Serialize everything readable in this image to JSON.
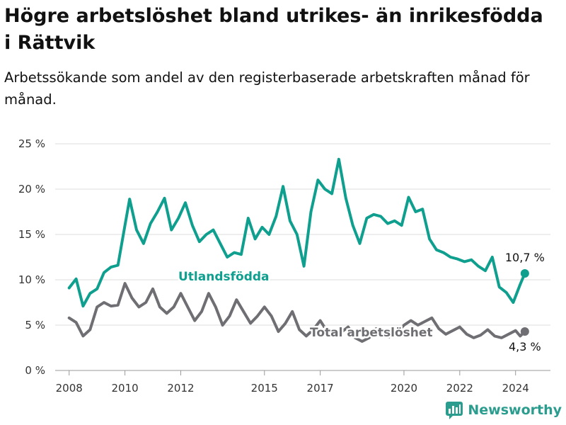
{
  "header": {
    "title": "Högre arbetslöshet bland utrikes- än inrikesfödda i Rättvik",
    "subtitle": "Arbetssökande som andel av den registerbaserade arbetskraften månad för månad."
  },
  "brand": {
    "name": "Newsworthy",
    "color": "#2a9d8f"
  },
  "chart_data": {
    "type": "line",
    "ylim": [
      0,
      25
    ],
    "y_ticks": [
      "0 %",
      "5 %",
      "10 %",
      "15 %",
      "20 %",
      "25 %"
    ],
    "x_ticks": [
      "2008",
      "2010",
      "2012",
      "2015",
      "2017",
      "2020",
      "2022",
      "2024"
    ],
    "grid": true,
    "series": [
      {
        "name": "Utlandsfödda",
        "color": "#0f9f8f",
        "end_label": "10,7 %",
        "points": [
          [
            "2008-01",
            9.1
          ],
          [
            "2008-04",
            10.1
          ],
          [
            "2008-07",
            7.1
          ],
          [
            "2008-10",
            8.5
          ],
          [
            "2009-01",
            9.0
          ],
          [
            "2009-04",
            10.8
          ],
          [
            "2009-07",
            11.4
          ],
          [
            "2009-10",
            11.6
          ],
          [
            "2010-01",
            16.0
          ],
          [
            "2010-03",
            18.9
          ],
          [
            "2010-06",
            15.5
          ],
          [
            "2010-09",
            14.0
          ],
          [
            "2010-12",
            16.2
          ],
          [
            "2011-03",
            17.5
          ],
          [
            "2011-06",
            19.0
          ],
          [
            "2011-09",
            15.5
          ],
          [
            "2011-12",
            16.8
          ],
          [
            "2012-03",
            18.5
          ],
          [
            "2012-06",
            16.0
          ],
          [
            "2012-09",
            14.2
          ],
          [
            "2012-12",
            15.0
          ],
          [
            "2013-03",
            15.5
          ],
          [
            "2013-06",
            14.0
          ],
          [
            "2013-09",
            12.5
          ],
          [
            "2013-12",
            13.0
          ],
          [
            "2014-03",
            12.8
          ],
          [
            "2014-06",
            16.8
          ],
          [
            "2014-09",
            14.5
          ],
          [
            "2014-12",
            15.8
          ],
          [
            "2015-03",
            15.0
          ],
          [
            "2015-06",
            17.0
          ],
          [
            "2015-09",
            20.3
          ],
          [
            "2015-12",
            16.5
          ],
          [
            "2016-03",
            15.0
          ],
          [
            "2016-06",
            11.5
          ],
          [
            "2016-09",
            17.5
          ],
          [
            "2016-12",
            21.0
          ],
          [
            "2017-03",
            20.0
          ],
          [
            "2017-06",
            19.5
          ],
          [
            "2017-09",
            23.3
          ],
          [
            "2017-12",
            19.0
          ],
          [
            "2018-03",
            16.0
          ],
          [
            "2018-06",
            14.0
          ],
          [
            "2018-09",
            16.8
          ],
          [
            "2018-12",
            17.2
          ],
          [
            "2019-03",
            17.0
          ],
          [
            "2019-06",
            16.2
          ],
          [
            "2019-09",
            16.5
          ],
          [
            "2019-12",
            16.0
          ],
          [
            "2020-03",
            19.1
          ],
          [
            "2020-06",
            17.5
          ],
          [
            "2020-09",
            17.8
          ],
          [
            "2020-12",
            14.5
          ],
          [
            "2021-03",
            13.3
          ],
          [
            "2021-06",
            13.0
          ],
          [
            "2021-09",
            12.5
          ],
          [
            "2021-12",
            12.3
          ],
          [
            "2022-03",
            12.0
          ],
          [
            "2022-06",
            12.2
          ],
          [
            "2022-09",
            11.5
          ],
          [
            "2022-12",
            11.0
          ],
          [
            "2023-03",
            12.5
          ],
          [
            "2023-06",
            9.2
          ],
          [
            "2023-09",
            8.6
          ],
          [
            "2023-12",
            7.5
          ],
          [
            "2024-03",
            9.5
          ],
          [
            "2024-05",
            10.7
          ]
        ]
      },
      {
        "name": "Total arbetslöshet",
        "color": "#6e6e73",
        "end_label": "4,3 %",
        "points": [
          [
            "2008-01",
            5.8
          ],
          [
            "2008-04",
            5.3
          ],
          [
            "2008-07",
            3.8
          ],
          [
            "2008-10",
            4.5
          ],
          [
            "2009-01",
            7.0
          ],
          [
            "2009-04",
            7.5
          ],
          [
            "2009-07",
            7.1
          ],
          [
            "2009-10",
            7.2
          ],
          [
            "2010-01",
            9.6
          ],
          [
            "2010-04",
            8.0
          ],
          [
            "2010-07",
            7.0
          ],
          [
            "2010-10",
            7.5
          ],
          [
            "2011-01",
            9.0
          ],
          [
            "2011-04",
            7.0
          ],
          [
            "2011-07",
            6.3
          ],
          [
            "2011-10",
            7.0
          ],
          [
            "2012-01",
            8.5
          ],
          [
            "2012-04",
            7.0
          ],
          [
            "2012-07",
            5.5
          ],
          [
            "2012-10",
            6.5
          ],
          [
            "2013-01",
            8.5
          ],
          [
            "2013-04",
            7.0
          ],
          [
            "2013-07",
            5.0
          ],
          [
            "2013-10",
            6.0
          ],
          [
            "2014-01",
            7.8
          ],
          [
            "2014-04",
            6.5
          ],
          [
            "2014-07",
            5.2
          ],
          [
            "2014-10",
            6.0
          ],
          [
            "2015-01",
            7.0
          ],
          [
            "2015-04",
            6.0
          ],
          [
            "2015-07",
            4.3
          ],
          [
            "2015-10",
            5.2
          ],
          [
            "2016-01",
            6.5
          ],
          [
            "2016-04",
            4.5
          ],
          [
            "2016-07",
            3.8
          ],
          [
            "2016-10",
            4.5
          ],
          [
            "2017-01",
            5.5
          ],
          [
            "2017-04",
            4.3
          ],
          [
            "2017-07",
            3.9
          ],
          [
            "2017-10",
            4.2
          ],
          [
            "2018-01",
            4.8
          ],
          [
            "2018-04",
            3.6
          ],
          [
            "2018-07",
            3.2
          ],
          [
            "2018-10",
            3.6
          ],
          [
            "2019-01",
            4.6
          ],
          [
            "2019-04",
            3.8
          ],
          [
            "2019-07",
            3.7
          ],
          [
            "2019-10",
            4.2
          ],
          [
            "2020-01",
            5.0
          ],
          [
            "2020-04",
            5.5
          ],
          [
            "2020-07",
            5.0
          ],
          [
            "2020-10",
            5.4
          ],
          [
            "2021-01",
            5.8
          ],
          [
            "2021-04",
            4.6
          ],
          [
            "2021-07",
            4.0
          ],
          [
            "2021-10",
            4.4
          ],
          [
            "2022-01",
            4.8
          ],
          [
            "2022-04",
            4.0
          ],
          [
            "2022-07",
            3.6
          ],
          [
            "2022-10",
            3.9
          ],
          [
            "2023-01",
            4.5
          ],
          [
            "2023-04",
            3.8
          ],
          [
            "2023-07",
            3.6
          ],
          [
            "2023-10",
            4.0
          ],
          [
            "2024-01",
            4.4
          ],
          [
            "2024-03",
            3.8
          ],
          [
            "2024-05",
            4.3
          ]
        ]
      }
    ]
  }
}
